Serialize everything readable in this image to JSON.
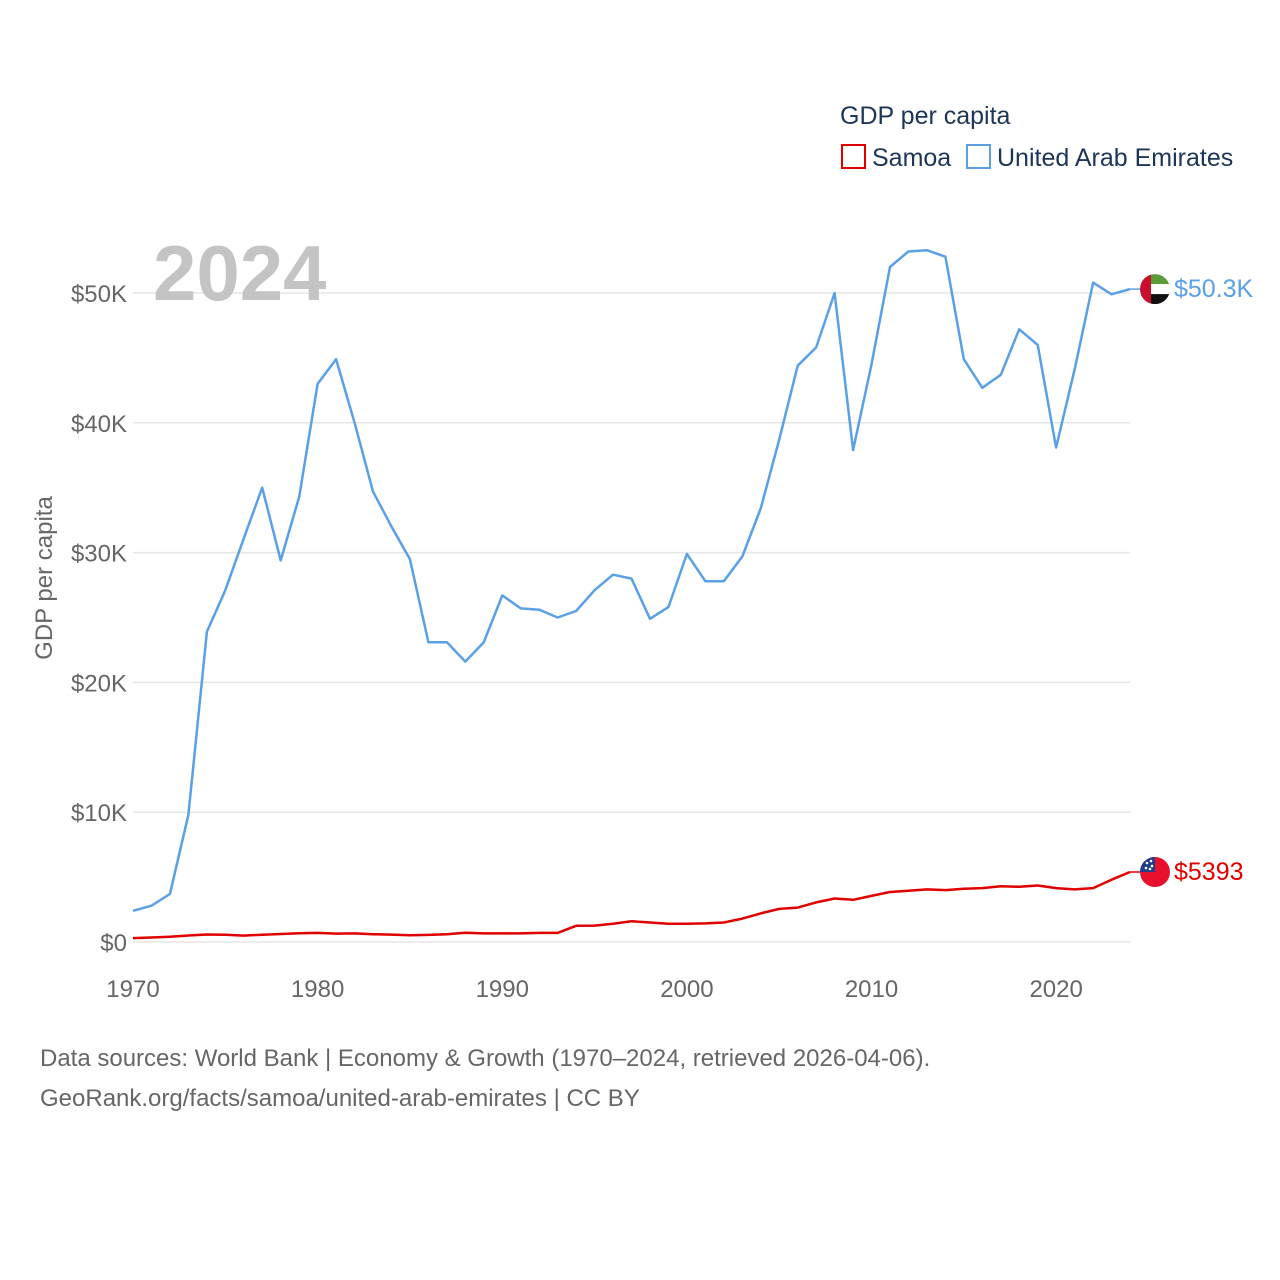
{
  "chart_data": {
    "type": "line",
    "title": "GDP per capita",
    "ylabel": "GDP per capita",
    "xlabel": "",
    "year_watermark": "2024",
    "x_ticks": [
      "1970",
      "1980",
      "1990",
      "2000",
      "2010",
      "2020"
    ],
    "x_tick_values": [
      1970,
      1980,
      1990,
      2000,
      2010,
      2020
    ],
    "y_ticks": [
      "$0",
      "$10K",
      "$20K",
      "$30K",
      "$40K",
      "$50K"
    ],
    "y_tick_values": [
      0,
      10000,
      20000,
      30000,
      40000,
      50000
    ],
    "xlim": [
      1970,
      2024
    ],
    "ylim": [
      0,
      54000
    ],
    "grid": true,
    "legend_position": "top-right",
    "x": [
      1970,
      1971,
      1972,
      1973,
      1974,
      1975,
      1976,
      1977,
      1978,
      1979,
      1980,
      1981,
      1982,
      1983,
      1984,
      1985,
      1986,
      1987,
      1988,
      1989,
      1990,
      1991,
      1992,
      1993,
      1994,
      1995,
      1996,
      1997,
      1998,
      1999,
      2000,
      2001,
      2002,
      2003,
      2004,
      2005,
      2006,
      2007,
      2008,
      2009,
      2010,
      2011,
      2012,
      2013,
      2014,
      2015,
      2016,
      2017,
      2018,
      2019,
      2020,
      2021,
      2022,
      2023,
      2024
    ],
    "series": [
      {
        "name": "Samoa",
        "color": "#e00000",
        "end_label": "$5393",
        "flag": "samoa",
        "values": [
          300,
          350,
          400,
          500,
          580,
          560,
          490,
          560,
          620,
          680,
          700,
          650,
          660,
          600,
          570,
          520,
          550,
          600,
          720,
          660,
          660,
          660,
          700,
          700,
          1250,
          1260,
          1400,
          1600,
          1500,
          1400,
          1400,
          1430,
          1500,
          1800,
          2200,
          2550,
          2650,
          3050,
          3350,
          3250,
          3550,
          3850,
          3950,
          4050,
          4000,
          4100,
          4150,
          4300,
          4250,
          4350,
          4150,
          4050,
          4150,
          4800,
          5393
        ]
      },
      {
        "name": "United Arab Emirates",
        "color": "#5aa0e6",
        "end_label": "$50.3K",
        "flag": "uae",
        "values": [
          2400,
          2800,
          3700,
          9800,
          23900,
          27100,
          31100,
          35000,
          29400,
          34300,
          43000,
          44900,
          40000,
          34700,
          32000,
          29500,
          23100,
          23100,
          21600,
          23100,
          26700,
          25700,
          25600,
          25000,
          25500,
          27100,
          28300,
          28000,
          24900,
          25800,
          29900,
          27800,
          27800,
          29700,
          33400,
          38700,
          44400,
          45800,
          50000,
          37900,
          44500,
          52000,
          53200,
          53300,
          52800,
          44900,
          42700,
          43700,
          47200,
          46000,
          38100,
          44100,
          50800,
          49900,
          50300
        ]
      }
    ]
  },
  "footer": {
    "line1": "Data sources: World Bank | Economy & Growth (1970–2024, retrieved 2026-04-06).",
    "line2": "GeoRank.org/facts/samoa/united-arab-emirates | CC BY"
  }
}
